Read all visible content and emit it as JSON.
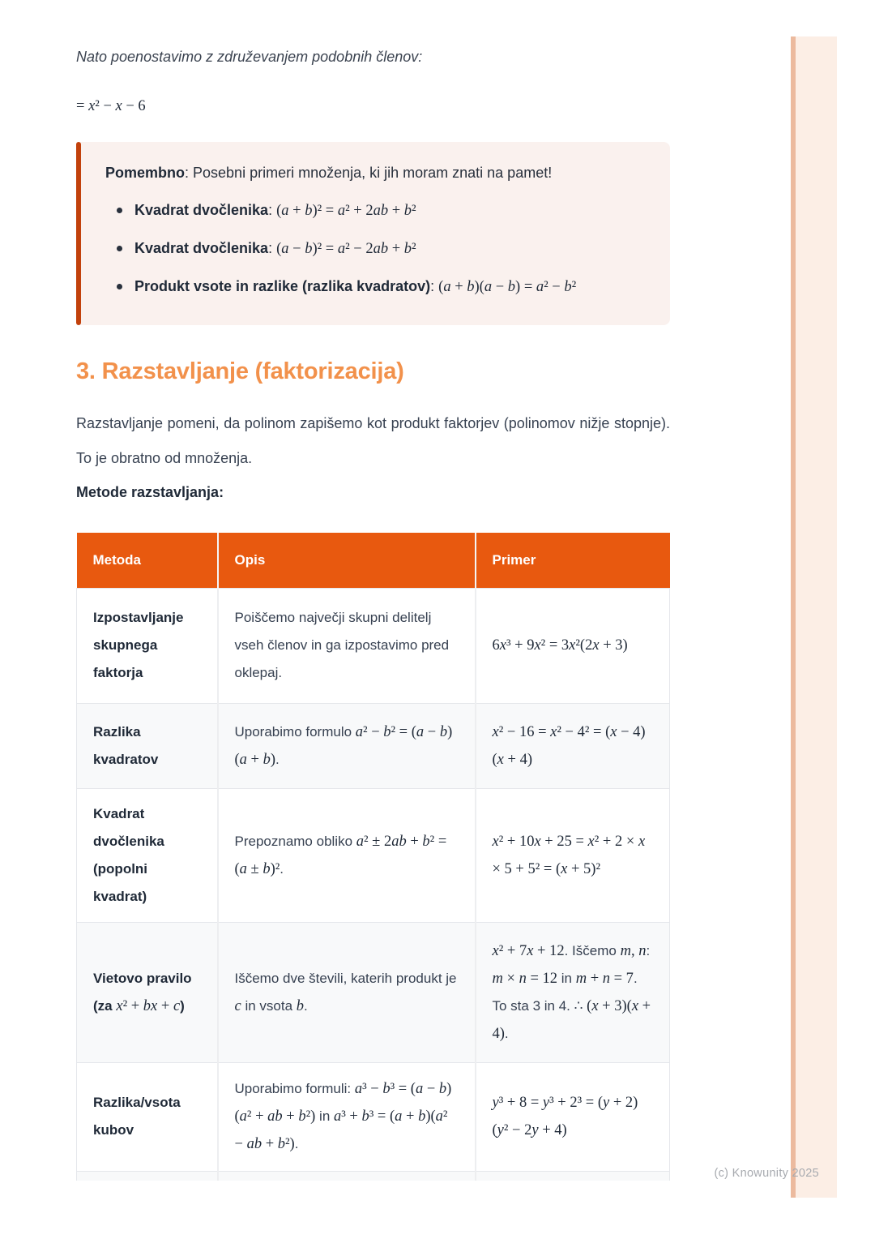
{
  "page": {
    "intro_line": "Nato poenostavimo z združevanjem podobnih členov:",
    "math_line": [
      {
        "t": "m",
        "v": "= x² − x − 6"
      }
    ]
  },
  "callout": {
    "title": [
      {
        "t": "b",
        "v": "Pomembno"
      },
      {
        "t": "t",
        "v": ": Posebni primeri množenja, ki jih moram znati na pamet!"
      }
    ],
    "items": [
      [
        {
          "t": "b",
          "v": "Kvadrat dvočlenika"
        },
        {
          "t": "t",
          "v": ": "
        },
        {
          "t": "m",
          "v": "(a + b)² = a² + 2ab + b²"
        }
      ],
      [
        {
          "t": "b",
          "v": "Kvadrat dvočlenika"
        },
        {
          "t": "t",
          "v": ": "
        },
        {
          "t": "m",
          "v": "(a − b)² = a² − 2ab + b²"
        }
      ],
      [
        {
          "t": "b",
          "v": "Produkt vsote in razlike (razlika kvadratov)"
        },
        {
          "t": "t",
          "v": ": "
        },
        {
          "t": "m",
          "v": "(a + b)(a − b) = a² − b²"
        }
      ]
    ]
  },
  "section": {
    "heading": "3. Razstavljanje (faktorizacija)",
    "paragraph": "Razstavljanje pomeni, da polinom zapišemo kot produkt faktorjev (polinomov nižje stopnje). To je obratno od množenja.",
    "methods_label": "Metode razstavljanja:"
  },
  "table": {
    "headers": [
      "Metoda",
      "Opis",
      "Primer"
    ],
    "rows": [
      {
        "metoda": [
          {
            "t": "b",
            "v": "Izpostavljanje skupnega faktorja"
          }
        ],
        "opis": [
          {
            "t": "t",
            "v": "Poiščemo največji skupni delitelj vseh členov in ga izpostavimo pred oklepaj."
          }
        ],
        "primer": [
          {
            "t": "m",
            "v": "6x³ + 9x² = 3x²(2x + 3)"
          }
        ]
      },
      {
        "metoda": [
          {
            "t": "b",
            "v": "Razlika kvadratov"
          }
        ],
        "opis": [
          {
            "t": "t",
            "v": "Uporabimo formulo "
          },
          {
            "t": "m",
            "v": "a² − b² = (a − b)(a + b)"
          },
          {
            "t": "t",
            "v": "."
          }
        ],
        "primer": [
          {
            "t": "m",
            "v": "x² − 16 = x² − 4² = (x − 4)(x + 4)"
          }
        ]
      },
      {
        "metoda": [
          {
            "t": "b",
            "v": "Kvadrat dvočlenika (popolni kvadrat)"
          }
        ],
        "opis": [
          {
            "t": "t",
            "v": "Prepoznamo obliko "
          },
          {
            "t": "m",
            "v": "a² ± 2ab + b² = (a ± b)²"
          },
          {
            "t": "t",
            "v": "."
          }
        ],
        "primer": [
          {
            "t": "m",
            "v": "x² + 10x + 25 = x² + 2 × x × 5 + 5² = (x + 5)²"
          }
        ]
      },
      {
        "metoda": [
          {
            "t": "b",
            "v": "Vietovo pravilo (za "
          },
          {
            "t": "m",
            "v": "x² + bx + c"
          },
          {
            "t": "b",
            "v": ")"
          }
        ],
        "opis": [
          {
            "t": "t",
            "v": "Iščemo dve števili, katerih produkt je "
          },
          {
            "t": "m",
            "v": "c"
          },
          {
            "t": "t",
            "v": " in vsota "
          },
          {
            "t": "m",
            "v": "b"
          },
          {
            "t": "t",
            "v": "."
          }
        ],
        "primer": [
          {
            "t": "m",
            "v": "x² + 7x + 12"
          },
          {
            "t": "t",
            "v": ". Iščemo "
          },
          {
            "t": "m",
            "v": "m, n"
          },
          {
            "t": "t",
            "v": ": "
          },
          {
            "t": "m",
            "v": "m × n = 12"
          },
          {
            "t": "t",
            "v": " in "
          },
          {
            "t": "m",
            "v": "m + n = 7"
          },
          {
            "t": "t",
            "v": ". To sta 3 in 4. ∴ "
          },
          {
            "t": "m",
            "v": "(x + 3)(x + 4)"
          },
          {
            "t": "t",
            "v": "."
          }
        ]
      },
      {
        "metoda": [
          {
            "t": "b",
            "v": "Razlika/vsota kubov"
          }
        ],
        "opis": [
          {
            "t": "t",
            "v": "Uporabimo formuli: "
          },
          {
            "t": "m",
            "v": "a³ − b³ = (a − b)(a² + ab + b²)"
          },
          {
            "t": "t",
            "v": " in "
          },
          {
            "t": "m",
            "v": "a³ + b³ = (a + b)(a² − ab + b²)"
          },
          {
            "t": "t",
            "v": "."
          }
        ],
        "primer": [
          {
            "t": "m",
            "v": "y³ + 8 = y³ + 2³ = (y + 2)(y² − 2y + 4)"
          }
        ]
      },
      {
        "metoda": [],
        "opis": [],
        "primer": []
      }
    ]
  },
  "footer": {
    "watermark": "(c) Knowunity 2025"
  },
  "colors": {
    "table_header_orange": "#E8590F",
    "heading_orange": "#F2914B",
    "callout_bar": "#C2410C",
    "callout_bg": "#FAF1EE",
    "stripe_bg": "#FCEEE5",
    "stripe_border": "#ECBA9E"
  }
}
